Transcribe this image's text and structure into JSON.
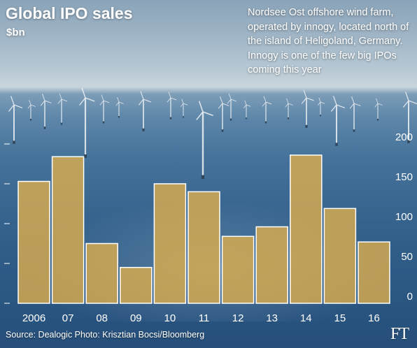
{
  "header": {
    "title": "Global IPO sales",
    "unit": "$bn"
  },
  "caption": "Nordsee Ost offshore wind farm, operated by innogy, located north of the island of Heligoland, Germany. Innogy is one of the few big IPOs coming this year",
  "footer": {
    "source": "Source: Dealogic   Photo: Krisztian Bocsi/Bloomberg",
    "logo": "FT"
  },
  "colors": {
    "bar_fill": "#e2b04a",
    "bar_stroke": "#ffffff",
    "text": "#ffffff"
  },
  "chart_data": {
    "type": "bar",
    "title": "Global IPO sales",
    "ylabel": "$bn",
    "categories": [
      "2006",
      "07",
      "08",
      "09",
      "10",
      "11",
      "12",
      "13",
      "14",
      "15",
      "16"
    ],
    "values": [
      153,
      184,
      75,
      45,
      150,
      140,
      84,
      96,
      186,
      119,
      77
    ],
    "ylim": [
      0,
      200
    ],
    "yticks": [
      0,
      50,
      100,
      150,
      200
    ],
    "grid": false,
    "axis_side": "right"
  }
}
